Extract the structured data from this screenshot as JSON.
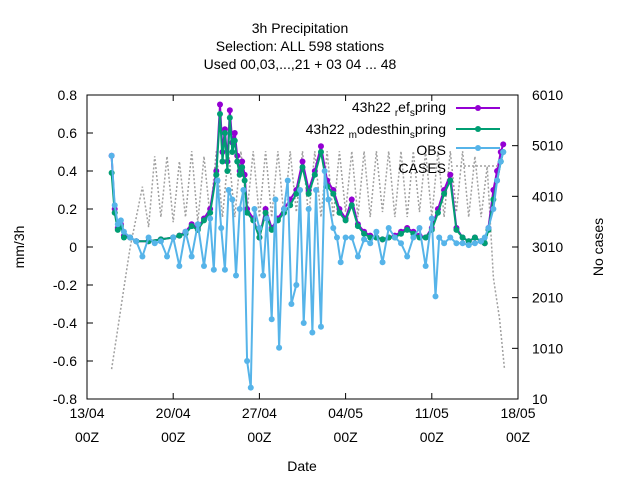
{
  "chart_data": {
    "type": "line",
    "title": [
      "3h Precipitation",
      "Selection: ALL    598 stations",
      "Used  00,03,...,21  + 03 04 ... 48"
    ],
    "xlabel": "Date",
    "ylabel": "mm/3h",
    "y2label": "No cases",
    "xlim": [
      0,
      35
    ],
    "ylim": [
      -0.8,
      0.8
    ],
    "y2lim": [
      10,
      6010
    ],
    "x_ticks": [
      {
        "x": 0,
        "line1": "13/04",
        "line2": "00Z"
      },
      {
        "x": 7,
        "line1": "20/04",
        "line2": "00Z"
      },
      {
        "x": 14,
        "line1": "27/04",
        "line2": "00Z"
      },
      {
        "x": 21,
        "line1": "04/05",
        "line2": "00Z"
      },
      {
        "x": 28,
        "line1": "11/05",
        "line2": "00Z"
      },
      {
        "x": 35,
        "line1": "18/05",
        "line2": "00Z"
      }
    ],
    "y_ticks": [
      "-0.8",
      "-0.6",
      "-0.4",
      "-0.2",
      "0",
      "0.2",
      "0.4",
      "0.6",
      "0.8"
    ],
    "y2_ticks": [
      "10",
      "1010",
      "2010",
      "3010",
      "4010",
      "5010",
      "6010"
    ],
    "legend_position": "top-right",
    "grid": false,
    "legend": [
      {
        "name": "43h22",
        "sub1": "r",
        "mid": "ef",
        "sub2": "s",
        "end": "pring",
        "color": "#9400d3"
      },
      {
        "name": "43h22",
        "sub1": "m",
        "mid": "odesthin",
        "sub2": "s",
        "end": "pring",
        "color": "#009e73"
      },
      {
        "name": "OBS",
        "color": "#56b4e9"
      },
      {
        "name": "CASES",
        "color": "#a0a0a0"
      }
    ],
    "series": [
      {
        "name": "43h22 ref_spring",
        "color": "#9400d3",
        "axis": "y",
        "x": [
          2.0,
          2.25,
          2.5,
          2.75,
          3.0,
          3.5,
          4.0,
          5.0,
          6.0,
          7.0,
          7.5,
          8.0,
          8.5,
          9.0,
          9.5,
          10.0,
          10.5,
          10.8,
          11.0,
          11.2,
          11.4,
          11.6,
          11.8,
          12.0,
          12.2,
          12.4,
          12.6,
          12.8,
          13.0,
          13.5,
          14.0,
          14.5,
          15.0,
          15.5,
          16.0,
          16.5,
          17.0,
          17.5,
          18.0,
          18.5,
          19.0,
          19.5,
          20.0,
          20.5,
          21.0,
          21.5,
          22.0,
          22.5,
          23.0,
          23.5,
          24.0,
          24.5,
          25.0,
          25.5,
          26.0,
          26.5,
          27.0,
          27.5,
          28.0,
          28.5,
          29.0,
          29.5,
          30.0,
          30.5,
          31.0,
          31.5,
          32.0,
          32.3,
          32.6,
          33.0,
          33.3,
          33.6,
          33.8
        ],
        "y": [
          0.48,
          0.2,
          0.1,
          0.12,
          0.06,
          0.05,
          0.03,
          0.03,
          0.04,
          0.05,
          0.06,
          0.08,
          0.12,
          0.1,
          0.15,
          0.2,
          0.4,
          0.75,
          0.5,
          0.62,
          0.45,
          0.72,
          0.55,
          0.6,
          0.48,
          0.4,
          0.45,
          0.38,
          0.2,
          0.15,
          0.05,
          0.2,
          0.1,
          0.15,
          0.2,
          0.25,
          0.3,
          0.45,
          0.3,
          0.4,
          0.53,
          0.35,
          0.3,
          0.2,
          0.15,
          0.25,
          0.12,
          0.08,
          0.06,
          0.05,
          0.04,
          0.05,
          0.06,
          0.08,
          0.1,
          0.08,
          0.06,
          0.05,
          0.1,
          0.2,
          0.3,
          0.38,
          0.1,
          0.05,
          0.03,
          0.05,
          0.03,
          0.02,
          0.1,
          0.3,
          0.4,
          0.5,
          0.54
        ]
      },
      {
        "name": "43h22 modesthin_spring",
        "color": "#009e73",
        "axis": "y",
        "x": [
          2.0,
          2.25,
          2.5,
          2.75,
          3.0,
          3.5,
          4.0,
          5.0,
          6.0,
          7.0,
          7.5,
          8.0,
          8.5,
          9.0,
          9.5,
          10.0,
          10.5,
          10.8,
          11.0,
          11.2,
          11.4,
          11.6,
          11.8,
          12.0,
          12.2,
          12.4,
          12.6,
          12.8,
          13.0,
          13.5,
          14.0,
          14.5,
          15.0,
          15.5,
          16.0,
          16.5,
          17.0,
          17.5,
          18.0,
          18.5,
          19.0,
          19.5,
          20.0,
          20.5,
          21.0,
          21.5,
          22.0,
          22.5,
          23.0,
          23.5,
          24.0,
          24.5,
          25.0,
          25.5,
          26.0,
          26.5,
          27.0,
          27.5,
          28.0,
          28.5,
          29.0,
          29.5,
          30.0,
          30.5,
          31.0,
          31.5,
          32.0,
          32.3,
          32.6,
          33.0,
          33.3,
          33.6,
          33.8
        ],
        "y": [
          0.39,
          0.18,
          0.09,
          0.11,
          0.05,
          0.05,
          0.03,
          0.03,
          0.04,
          0.05,
          0.06,
          0.07,
          0.11,
          0.09,
          0.14,
          0.18,
          0.38,
          0.7,
          0.45,
          0.6,
          0.4,
          0.68,
          0.5,
          0.56,
          0.45,
          0.38,
          0.42,
          0.35,
          0.18,
          0.14,
          0.05,
          0.18,
          0.09,
          0.14,
          0.18,
          0.22,
          0.28,
          0.42,
          0.28,
          0.38,
          0.5,
          0.32,
          0.28,
          0.18,
          0.14,
          0.22,
          0.11,
          0.07,
          0.05,
          0.05,
          0.04,
          0.05,
          0.05,
          0.07,
          0.09,
          0.07,
          0.05,
          0.05,
          0.09,
          0.18,
          0.28,
          0.35,
          0.09,
          0.05,
          0.03,
          0.05,
          0.03,
          0.02,
          0.09,
          0.25,
          0.35,
          0.45,
          0.5
        ]
      },
      {
        "name": "OBS",
        "color": "#56b4e9",
        "axis": "y",
        "x": [
          2.0,
          2.25,
          2.5,
          2.75,
          3.0,
          3.5,
          4.0,
          4.5,
          5.0,
          5.5,
          6.0,
          6.5,
          7.0,
          7.5,
          8.0,
          8.5,
          9.0,
          9.5,
          10.0,
          10.3,
          10.6,
          10.9,
          11.2,
          11.5,
          11.8,
          12.1,
          12.4,
          12.7,
          13.0,
          13.3,
          13.6,
          14.0,
          14.3,
          14.6,
          15.0,
          15.3,
          15.6,
          16.0,
          16.3,
          16.6,
          17.0,
          17.3,
          17.6,
          18.0,
          18.3,
          18.6,
          19.0,
          19.3,
          19.6,
          20.0,
          20.3,
          20.6,
          21.0,
          21.5,
          22.0,
          22.5,
          23.0,
          23.5,
          24.0,
          24.5,
          25.0,
          25.5,
          26.0,
          26.5,
          27.0,
          27.5,
          28.0,
          28.3,
          28.6,
          29.0,
          29.5,
          30.0,
          30.5,
          31.0,
          31.5,
          32.0,
          32.3,
          32.6,
          33.0,
          33.3,
          33.6,
          33.8
        ],
        "y": [
          0.48,
          0.22,
          0.12,
          0.14,
          0.08,
          0.05,
          0.03,
          -0.05,
          0.05,
          0.02,
          0.03,
          -0.05,
          0.05,
          -0.1,
          0.08,
          -0.05,
          0.12,
          -0.1,
          0.15,
          -0.12,
          0.35,
          0.1,
          -0.12,
          0.3,
          0.25,
          -0.15,
          0.2,
          0.3,
          -0.6,
          -0.74,
          0.2,
          0.1,
          -0.15,
          0.15,
          -0.38,
          0.25,
          -0.53,
          0.2,
          0.35,
          -0.3,
          -0.2,
          0.3,
          -0.4,
          0.2,
          -0.45,
          0.3,
          -0.42,
          0.4,
          0.25,
          0.1,
          0.05,
          -0.08,
          0.05,
          0.05,
          -0.05,
          0.04,
          0.02,
          0.08,
          -0.08,
          0.1,
          0.05,
          0.02,
          -0.05,
          0.05,
          0.1,
          -0.1,
          0.15,
          -0.26,
          0.05,
          0.02,
          0.05,
          0.02,
          0.02,
          0.01,
          0.02,
          0.03,
          0.05,
          0.1,
          0.2,
          0.35,
          0.45,
          0.5
        ]
      },
      {
        "name": "CASES",
        "color": "#a0a0a0",
        "axis": "y2",
        "x": [
          2.0,
          2.5,
          3.0,
          3.5,
          4.0,
          4.5,
          5.0,
          5.5,
          6.0,
          6.5,
          7.0,
          7.5,
          8.0,
          8.5,
          9.0,
          9.5,
          10.0,
          10.5,
          11.0,
          11.5,
          12.0,
          12.5,
          13.0,
          13.5,
          14.0,
          14.5,
          15.0,
          15.5,
          16.0,
          16.5,
          17.0,
          17.5,
          18.0,
          18.5,
          19.0,
          19.5,
          20.0,
          20.5,
          21.0,
          21.5,
          22.0,
          22.5,
          23.0,
          23.5,
          24.0,
          24.5,
          25.0,
          25.5,
          26.0,
          26.5,
          27.0,
          27.5,
          28.0,
          28.5,
          29.0,
          29.5,
          30.0,
          30.5,
          31.0,
          31.5,
          32.0,
          32.5,
          33.0,
          33.5,
          33.9
        ],
        "y": [
          600,
          1400,
          2200,
          3000,
          3600,
          4200,
          3400,
          4800,
          3600,
          4800,
          3500,
          4700,
          3600,
          4900,
          3500,
          4800,
          3600,
          4900,
          3600,
          4900,
          3600,
          4900,
          3700,
          4900,
          3600,
          4900,
          3600,
          4900,
          3600,
          4900,
          3700,
          4900,
          3600,
          4900,
          3600,
          4900,
          3600,
          4900,
          3700,
          4900,
          3600,
          4900,
          3600,
          4900,
          3700,
          4900,
          3600,
          4900,
          3600,
          4900,
          3700,
          4900,
          3600,
          4900,
          3600,
          4900,
          3700,
          4900,
          3600,
          4800,
          3600,
          4600,
          2400,
          1600,
          600
        ]
      }
    ]
  }
}
